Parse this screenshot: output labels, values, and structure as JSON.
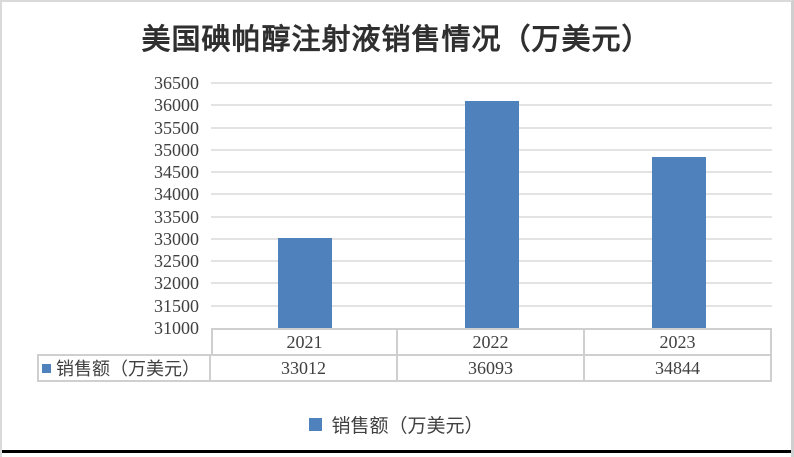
{
  "chart_data": {
    "type": "bar",
    "title": "美国碘帕醇注射液销售情况（万美元）",
    "categories": [
      "2021",
      "2022",
      "2023"
    ],
    "series": [
      {
        "name": "销售额（万美元）",
        "values": [
          33012,
          36093,
          34844
        ]
      }
    ],
    "ylim": [
      31000,
      36500
    ],
    "ytick_step": 500,
    "yticks": [
      36500,
      36000,
      35500,
      35000,
      34500,
      34000,
      33500,
      33000,
      32500,
      32000,
      31500,
      31000
    ],
    "grid": true,
    "legend_position": "bottom",
    "data_table_shown": true,
    "xlabel": "",
    "ylabel": ""
  },
  "colors": {
    "bar": "#4F81BD",
    "gridline": "#E3E3E3",
    "table_border": "#CFCFCF",
    "text": "#404040"
  }
}
